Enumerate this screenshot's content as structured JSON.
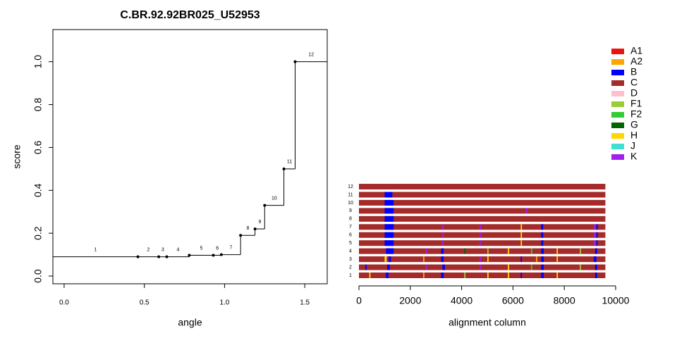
{
  "chart_data": [
    {
      "type": "step",
      "title": "C.BR.92.92BR025_U52953",
      "xlabel": "angle",
      "ylabel": "score",
      "labels": [
        "1",
        "2",
        "3",
        "4",
        "5",
        "6",
        "7",
        "8",
        "9",
        "10",
        "11",
        "12"
      ],
      "scores": [
        0.09,
        0.09,
        0.09,
        0.09,
        0.097,
        0.097,
        0.1,
        0.19,
        0.22,
        0.33,
        0.5,
        1.0
      ],
      "breaks": [
        0.46,
        0.59,
        0.64,
        0.78,
        0.93,
        0.98,
        1.1,
        1.19,
        1.25,
        1.37,
        1.44
      ],
      "color": "#000000",
      "xlim": [
        -0.07,
        1.64
      ],
      "ylim": [
        -0.036,
        1.15
      ],
      "xticks": [
        {
          "value": 0,
          "label": "0.0"
        },
        {
          "value": 0.5,
          "label": "0.5"
        },
        {
          "value": 1,
          "label": "1.0"
        },
        {
          "value": 1.5,
          "label": "1.5"
        }
      ],
      "yticks": [
        {
          "value": 0,
          "label": "0.0"
        },
        {
          "value": 0.2,
          "label": "0.2"
        },
        {
          "value": 0.4,
          "label": "0.4"
        },
        {
          "value": 0.6,
          "label": "0.6"
        },
        {
          "value": 0.8,
          "label": "0.8"
        },
        {
          "value": 1,
          "label": "1.0"
        }
      ]
    },
    {
      "type": "mosaic",
      "xlabel": "alignment column",
      "xlim": [
        0,
        10000
      ],
      "xticks": [
        0,
        2000,
        4000,
        6000,
        8000,
        10000
      ],
      "length": 9600,
      "base": "C",
      "series": [
        {
          "name": "A1",
          "color": "#ee1111"
        },
        {
          "name": "A2",
          "color": "#ffa500"
        },
        {
          "name": "B",
          "color": "#0000ff"
        },
        {
          "name": "C",
          "color": "#a52a2a"
        },
        {
          "name": "D",
          "color": "#ffc0cb"
        },
        {
          "name": "F1",
          "color": "#9acd32"
        },
        {
          "name": "F2",
          "color": "#32cd32"
        },
        {
          "name": "G",
          "color": "#006400"
        },
        {
          "name": "H",
          "color": "#ffd700"
        },
        {
          "name": "J",
          "color": "#40e0d0"
        },
        {
          "name": "K",
          "color": "#a020f0"
        }
      ],
      "rows": [
        {
          "label": "1",
          "segments": [
            {
              "start": 400,
              "end": 450,
              "subtype": "H"
            },
            {
              "start": 1050,
              "end": 1150,
              "subtype": "B"
            },
            {
              "start": 2500,
              "end": 2550,
              "subtype": "A2"
            },
            {
              "start": 3200,
              "end": 3300,
              "subtype": "B"
            },
            {
              "start": 4100,
              "end": 4150,
              "subtype": "F1"
            },
            {
              "start": 5000,
              "end": 5050,
              "subtype": "H"
            },
            {
              "start": 5800,
              "end": 5850,
              "subtype": "H"
            },
            {
              "start": 6300,
              "end": 6350,
              "subtype": "B"
            },
            {
              "start": 7100,
              "end": 7200,
              "subtype": "B"
            },
            {
              "start": 7700,
              "end": 7750,
              "subtype": "H"
            },
            {
              "start": 9200,
              "end": 9280,
              "subtype": "B"
            }
          ]
        },
        {
          "label": "2",
          "segments": [
            {
              "start": 250,
              "end": 300,
              "subtype": "B"
            },
            {
              "start": 1100,
              "end": 1200,
              "subtype": "B"
            },
            {
              "start": 2600,
              "end": 2650,
              "subtype": "K"
            },
            {
              "start": 3250,
              "end": 3350,
              "subtype": "B"
            },
            {
              "start": 4700,
              "end": 4750,
              "subtype": "K"
            },
            {
              "start": 5600,
              "end": 5650,
              "subtype": "A1"
            },
            {
              "start": 5800,
              "end": 5850,
              "subtype": "H"
            },
            {
              "start": 6700,
              "end": 6750,
              "subtype": "F2"
            },
            {
              "start": 7100,
              "end": 7200,
              "subtype": "B"
            },
            {
              "start": 8600,
              "end": 8650,
              "subtype": "F1"
            },
            {
              "start": 9200,
              "end": 9280,
              "subtype": "B"
            }
          ]
        },
        {
          "label": "3",
          "segments": [
            {
              "start": 1000,
              "end": 1080,
              "subtype": "H"
            },
            {
              "start": 1150,
              "end": 1250,
              "subtype": "B"
            },
            {
              "start": 2500,
              "end": 2550,
              "subtype": "A2"
            },
            {
              "start": 3200,
              "end": 3300,
              "subtype": "B"
            },
            {
              "start": 4700,
              "end": 4750,
              "subtype": "K"
            },
            {
              "start": 5000,
              "end": 5050,
              "subtype": "H"
            },
            {
              "start": 6300,
              "end": 6350,
              "subtype": "B"
            },
            {
              "start": 6900,
              "end": 6950,
              "subtype": "A2"
            },
            {
              "start": 7100,
              "end": 7200,
              "subtype": "B"
            },
            {
              "start": 7700,
              "end": 7750,
              "subtype": "H"
            },
            {
              "start": 9150,
              "end": 9250,
              "subtype": "B"
            }
          ]
        },
        {
          "label": "4",
          "segments": [
            {
              "start": 1050,
              "end": 1350,
              "subtype": "B"
            },
            {
              "start": 2600,
              "end": 2650,
              "subtype": "K"
            },
            {
              "start": 3200,
              "end": 3300,
              "subtype": "B"
            },
            {
              "start": 4100,
              "end": 4150,
              "subtype": "G"
            },
            {
              "start": 5000,
              "end": 5050,
              "subtype": "F1"
            },
            {
              "start": 5800,
              "end": 5850,
              "subtype": "H"
            },
            {
              "start": 6700,
              "end": 6750,
              "subtype": "F2"
            },
            {
              "start": 7100,
              "end": 7200,
              "subtype": "B"
            },
            {
              "start": 7700,
              "end": 7750,
              "subtype": "H"
            },
            {
              "start": 8600,
              "end": 8650,
              "subtype": "F1"
            },
            {
              "start": 9200,
              "end": 9280,
              "subtype": "B"
            }
          ]
        },
        {
          "label": "5",
          "segments": [
            {
              "start": 1000,
              "end": 1350,
              "subtype": "B"
            },
            {
              "start": 3250,
              "end": 3300,
              "subtype": "K"
            },
            {
              "start": 4700,
              "end": 4750,
              "subtype": "K"
            },
            {
              "start": 6300,
              "end": 6350,
              "subtype": "H"
            },
            {
              "start": 7100,
              "end": 7180,
              "subtype": "B"
            },
            {
              "start": 9150,
              "end": 9200,
              "subtype": "K"
            },
            {
              "start": 9250,
              "end": 9300,
              "subtype": "B"
            }
          ]
        },
        {
          "label": "6",
          "segments": [
            {
              "start": 1000,
              "end": 1350,
              "subtype": "B"
            },
            {
              "start": 3250,
              "end": 3300,
              "subtype": "K"
            },
            {
              "start": 4700,
              "end": 4750,
              "subtype": "K"
            },
            {
              "start": 6300,
              "end": 6350,
              "subtype": "H"
            },
            {
              "start": 7100,
              "end": 7180,
              "subtype": "B"
            },
            {
              "start": 9150,
              "end": 9200,
              "subtype": "K"
            },
            {
              "start": 9250,
              "end": 9300,
              "subtype": "B"
            }
          ]
        },
        {
          "label": "7",
          "segments": [
            {
              "start": 1000,
              "end": 1350,
              "subtype": "B"
            },
            {
              "start": 3250,
              "end": 3300,
              "subtype": "K"
            },
            {
              "start": 4700,
              "end": 4750,
              "subtype": "K"
            },
            {
              "start": 6300,
              "end": 6350,
              "subtype": "H"
            },
            {
              "start": 7100,
              "end": 7180,
              "subtype": "B"
            },
            {
              "start": 9150,
              "end": 9200,
              "subtype": "K"
            },
            {
              "start": 9250,
              "end": 9300,
              "subtype": "B"
            }
          ]
        },
        {
          "label": "8",
          "segments": [
            {
              "start": 1000,
              "end": 1350,
              "subtype": "B"
            }
          ]
        },
        {
          "label": "9",
          "segments": [
            {
              "start": 1000,
              "end": 1350,
              "subtype": "B"
            },
            {
              "start": 6500,
              "end": 6560,
              "subtype": "K"
            }
          ]
        },
        {
          "label": "10",
          "segments": [
            {
              "start": 1000,
              "end": 1350,
              "subtype": "B"
            }
          ]
        },
        {
          "label": "11",
          "segments": [
            {
              "start": 1000,
              "end": 1300,
              "subtype": "B"
            }
          ]
        },
        {
          "label": "12",
          "segments": []
        }
      ]
    }
  ]
}
